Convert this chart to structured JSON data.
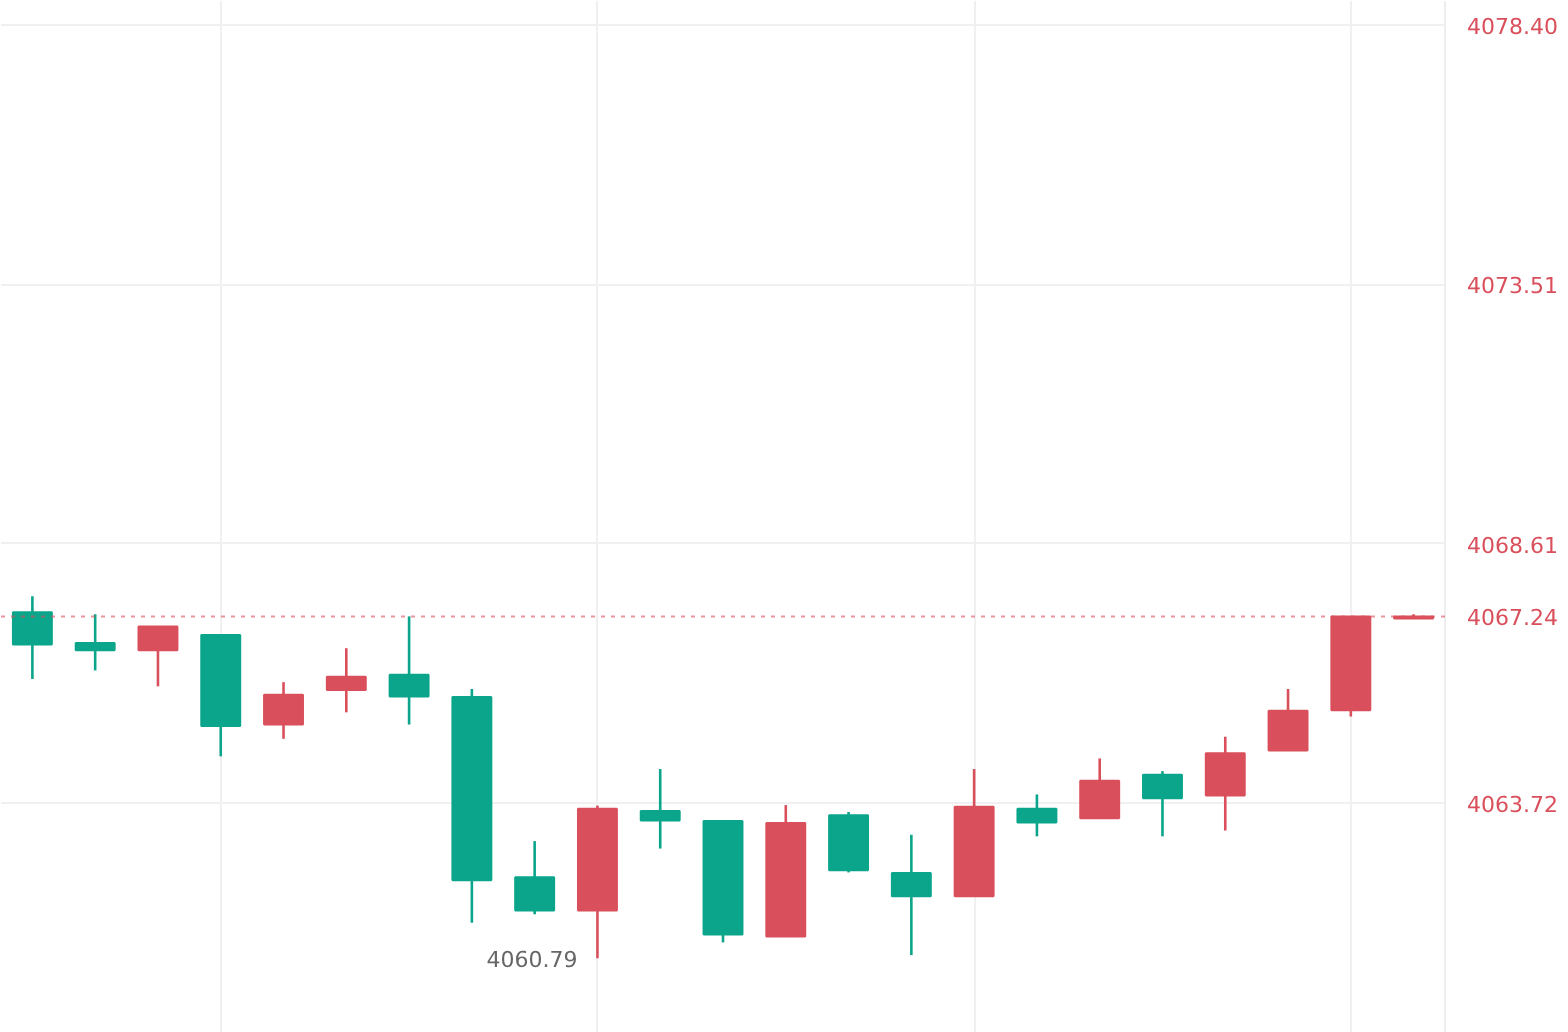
{
  "chart_data": {
    "type": "candlestick",
    "categories": [
      null,
      null,
      null,
      null,
      null,
      null,
      null,
      null,
      null,
      null,
      null,
      null,
      null,
      null,
      null,
      null,
      null,
      null,
      null,
      null,
      null,
      null,
      null
    ],
    "ohlc": [
      [
        4067.32,
        4067.62,
        4066.06,
        4066.71
      ],
      [
        4066.74,
        4067.28,
        4066.22,
        4066.6
      ],
      [
        4066.6,
        4067.05,
        4065.92,
        4067.05
      ],
      [
        4066.89,
        4066.89,
        4064.6,
        4065.17
      ],
      [
        4065.2,
        4066.0,
        4064.93,
        4065.76
      ],
      [
        4065.85,
        4066.64,
        4065.43,
        4066.1
      ],
      [
        4066.14,
        4067.24,
        4065.2,
        4065.73
      ],
      [
        4065.72,
        4065.87,
        4061.46,
        4062.26
      ],
      [
        4062.32,
        4063.0,
        4061.62,
        4061.69
      ],
      [
        4061.69,
        4063.67,
        4060.79,
        4063.61
      ],
      [
        4063.57,
        4064.36,
        4062.86,
        4063.39
      ],
      [
        4063.38,
        4063.38,
        4061.09,
        4061.24
      ],
      [
        4061.2,
        4063.68,
        4061.2,
        4063.34
      ],
      [
        4063.49,
        4063.55,
        4062.41,
        4062.45
      ],
      [
        4062.4,
        4063.12,
        4060.85,
        4061.96
      ],
      [
        4061.96,
        4064.36,
        4061.96,
        4063.65
      ],
      [
        4063.61,
        4063.88,
        4063.09,
        4063.35
      ],
      [
        4063.43,
        4064.56,
        4063.43,
        4064.14
      ],
      [
        4064.25,
        4064.32,
        4063.09,
        4063.81
      ],
      [
        4063.86,
        4064.97,
        4063.2,
        4064.66
      ],
      [
        4064.71,
        4065.87,
        4064.71,
        4065.46
      ],
      [
        4065.47,
        4067.24,
        4065.35,
        4067.24
      ],
      [
        4067.2,
        4067.28,
        4067.2,
        4067.24
      ]
    ],
    "colors": [
      "#0aa58a",
      "#0aa58a",
      "#d9505c",
      "#0aa58a",
      "#d9505c",
      "#d9505c",
      "#0aa58a",
      "#0aa58a",
      "#0aa58a",
      "#d9505c",
      "#0aa58a",
      "#0aa58a",
      "#d9505c",
      "#0aa58a",
      "#0aa58a",
      "#d9505c",
      "#0aa58a",
      "#d9505c",
      "#0aa58a",
      "#d9505c",
      "#d9505c",
      "#d9505c",
      "#d9505c"
    ],
    "ylim": [
      4059.38,
      4078.85
    ],
    "yticks": [
      4063.72,
      4068.61,
      4073.51,
      {
        "value": 4078.4,
        "label": "4078.40"
      }
    ],
    "ref_lines": [
      {
        "axis": "y",
        "value": 4067.24,
        "label": "4067.24",
        "color": "#d9505c",
        "line_style": "dotted"
      }
    ],
    "annotations": [
      "4060.79"
    ],
    "grid": true
  }
}
